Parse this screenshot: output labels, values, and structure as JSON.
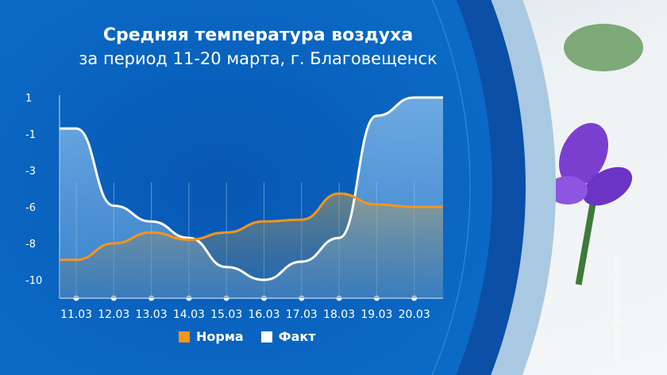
{
  "chart_data": {
    "type": "area",
    "title": "Средняя температура воздуха",
    "subtitle": "за период 11-20 марта, г. Благовещенск",
    "categories": [
      "11.03",
      "12.03",
      "13.03",
      "14.03",
      "15.03",
      "16.03",
      "17.03",
      "18.03",
      "19.03",
      "20.03"
    ],
    "y_ticks": [
      1,
      -1,
      -3,
      -6,
      -8,
      -10
    ],
    "grid": false,
    "legend_position": "bottom",
    "series": [
      {
        "name": "Норма",
        "color": "#f7941d",
        "values": [
          -8.9,
          -8.0,
          -7.4,
          -7.8,
          -7.4,
          -6.8,
          -6.7,
          -4.9,
          -5.8,
          -6.0
        ]
      },
      {
        "name": "Факт",
        "color": "#ffffff",
        "values": [
          -0.7,
          -5.9,
          -6.8,
          -7.7,
          -9.3,
          -10.0,
          -9.0,
          -7.7,
          0.0,
          1.0
        ]
      }
    ]
  },
  "watermark": "storage.googleapis.com",
  "colors": {
    "background_blue": "#0a62bd",
    "norma": "#f7941d",
    "fakt": "#ffffff"
  }
}
